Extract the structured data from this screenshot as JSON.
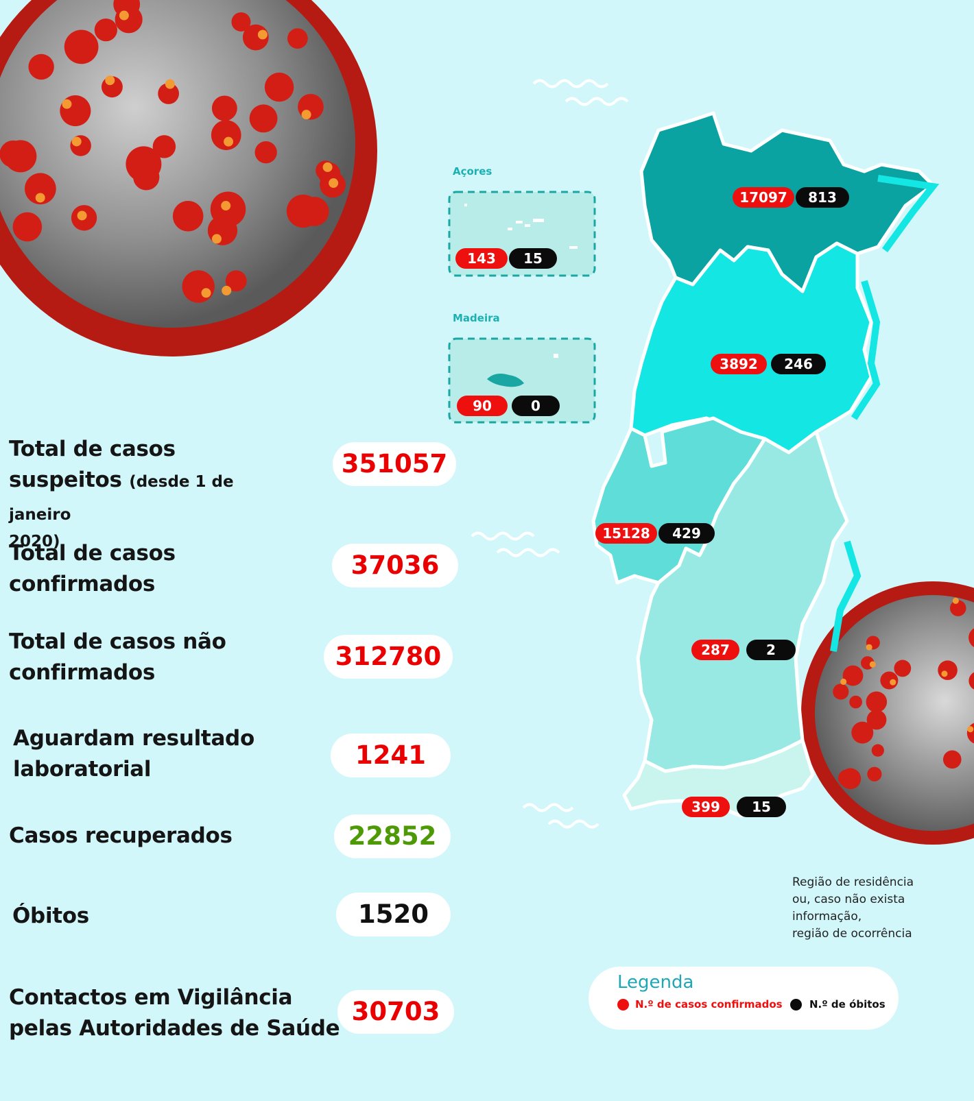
{
  "stats": [
    {
      "label_line1": "Total de casos",
      "label_line2": "suspeitos",
      "label_note": "(desde 1 de janeiro",
      "label_line3": "2020)",
      "value": "351057",
      "color": "#ea0000"
    },
    {
      "label_line1": "Total de casos",
      "label_line2": "confirmados",
      "value": "37036",
      "color": "#ea0000"
    },
    {
      "label_line1": "Total de casos não",
      "label_line2": "confirmados",
      "value": "312780",
      "color": "#ea0000"
    },
    {
      "label_line1": "Aguardam resultado",
      "label_line2": "laboratorial",
      "value": "1241",
      "color": "#ea0000"
    },
    {
      "label_line1": "Casos recuperados",
      "value": "22852",
      "color": "#4e9a06"
    },
    {
      "label_line1": "Óbitos",
      "value": "1520",
      "color": "#111111"
    },
    {
      "label_line1": "Contactos em Vigilância",
      "label_line2": "pelas Autoridades de Saúde",
      "value": "30703",
      "color": "#ea0000"
    }
  ],
  "islands": {
    "acores": {
      "title": "Açores",
      "cases": "143",
      "deaths": "15"
    },
    "madeira": {
      "title": "Madeira",
      "cases": "90",
      "deaths": "0"
    }
  },
  "regions": [
    {
      "region": "north",
      "cases": "17097",
      "deaths": "813"
    },
    {
      "region": "centre",
      "cases": "3892",
      "deaths": "246"
    },
    {
      "region": "lisbon",
      "cases": "15128",
      "deaths": "429"
    },
    {
      "region": "alentejo",
      "cases": "287",
      "deaths": "2"
    },
    {
      "region": "algarve",
      "cases": "399",
      "deaths": "15"
    }
  ],
  "region_note": {
    "line1": "Região de residência",
    "line2": "ou, caso não exista informação,",
    "line3": "região de ocorrência"
  },
  "legend": {
    "title": "Legenda",
    "cases_label": "N.º de casos confirmados",
    "deaths_label": "N.º de óbitos"
  },
  "colors": {
    "background": "#d2f7fa",
    "cases_red": "#ee0f0f",
    "deaths_black": "#0b0b0b",
    "north": "#0aa3a1",
    "centre": "#14e6e3",
    "lisbon": "#5fded9",
    "alentejo": "#98e9e3",
    "algarve": "#c9f5ee",
    "virus_red": "#c21c12",
    "virus_grey": "#8f8f8f"
  },
  "icons": [
    "coronavirus-illustration",
    "wave-decoration",
    "portugal-map"
  ]
}
